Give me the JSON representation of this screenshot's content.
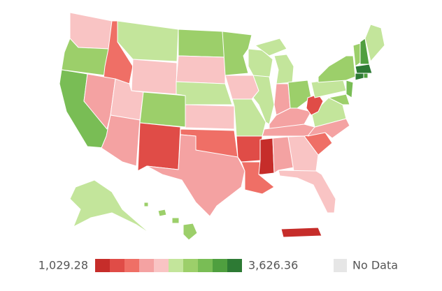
{
  "map": {
    "regions": [
      "#f9c4c4",
      "#9ccf6a",
      "#79bd55",
      "#ef6f66",
      "#f4a2a2",
      "#c3e59b",
      "#f9c4c4",
      "#f9c4c4",
      "#f4a2a2",
      "#9ccf6a",
      "#e04c47",
      "#9ccf6a",
      "#f9c4c4",
      "#c3e59b",
      "#f9c4c4",
      "#ef6f66",
      "#f4a2a2",
      "#9ccf6a",
      "#f9c4c4",
      "#c3e59b",
      "#e04c47",
      "#ef6f66",
      "#c3e59b",
      "#c3e59b",
      "#c3e59b",
      "#f4a2a2",
      "#9ccf6a",
      "#f4a2a2",
      "#f4a2a2",
      "#c62d2a",
      "#f4a2a2",
      "#f9c4c4",
      "#f9c4c4",
      "#ef6f66",
      "#f4a2a2",
      "#c3e59b",
      "#e04c47",
      "#c3e59b",
      "#9ccf6a",
      "#79bd55",
      "#9ccf6a",
      "#9ccf6a",
      "#4f9f3f",
      "#c3e59b",
      "#2d7a34",
      "#2d7a34",
      "#4f9f3f",
      "#c3e59b",
      "#9ccf6a",
      "#c62d2a"
    ],
    "legend": {
      "min": {
        "value": 1029.28,
        "label": "1,029.28"
      },
      "max": {
        "value": 3626.36,
        "label": "3,626.36"
      },
      "colors": [
        "#c62d2a",
        "#e04c47",
        "#ef6f66",
        "#f4a2a2",
        "#f9c4c4",
        "#c3e59b",
        "#9ccf6a",
        "#79bd55",
        "#4f9f3f",
        "#2d7a34"
      ],
      "no_data": {
        "label": "No Data",
        "color": "#e6e6e6"
      }
    }
  }
}
